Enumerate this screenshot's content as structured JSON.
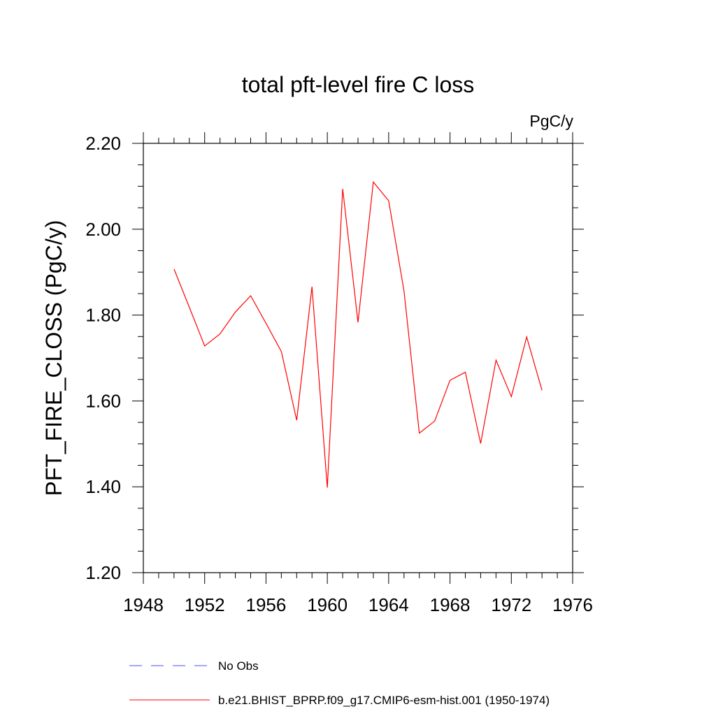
{
  "chart_data": {
    "type": "line",
    "title": "total pft-level fire C loss",
    "units_label": "PgC/y",
    "ylabel": "PFT_FIRE_CLOSS  (PgC/y)",
    "xlabel": "",
    "xlim": [
      1948,
      1976
    ],
    "ylim": [
      1.2,
      2.2
    ],
    "x_ticks": [
      1948,
      1952,
      1956,
      1960,
      1964,
      1968,
      1972,
      1976
    ],
    "x_tick_labels": [
      "1948",
      "1952",
      "1956",
      "1960",
      "1964",
      "1968",
      "1972",
      "1976"
    ],
    "y_ticks": [
      1.2,
      1.4,
      1.6,
      1.8,
      2.0,
      2.2
    ],
    "y_tick_labels": [
      "1.20",
      "1.40",
      "1.60",
      "1.80",
      "2.00",
      "2.20"
    ],
    "grid": false,
    "legend_position": "bottom",
    "series": [
      {
        "name": "b.e21.BHIST_BPRP.f09_g17.CMIP6-esm-hist.001 (1950-1974)",
        "color": "#ff0000",
        "style": "solid",
        "x": [
          1950,
          1951,
          1952,
          1953,
          1954,
          1955,
          1956,
          1957,
          1958,
          1959,
          1960,
          1961,
          1962,
          1963,
          1964,
          1965,
          1966,
          1967,
          1968,
          1969,
          1970,
          1971,
          1972,
          1973,
          1974
        ],
        "values": [
          1.907,
          1.818,
          1.728,
          1.756,
          1.807,
          1.845,
          1.781,
          1.715,
          1.555,
          1.866,
          1.398,
          2.094,
          1.783,
          2.11,
          2.066,
          1.856,
          1.525,
          1.553,
          1.648,
          1.667,
          1.501,
          1.695,
          1.61,
          1.749,
          1.625
        ]
      }
    ],
    "legend": [
      {
        "label": "No Obs",
        "color": "#4a4aff",
        "style": "dashed"
      },
      {
        "label": "b.e21.BHIST_BPRP.f09_g17.CMIP6-esm-hist.001 (1950-1974)",
        "color": "#ff0000",
        "style": "solid"
      }
    ]
  }
}
